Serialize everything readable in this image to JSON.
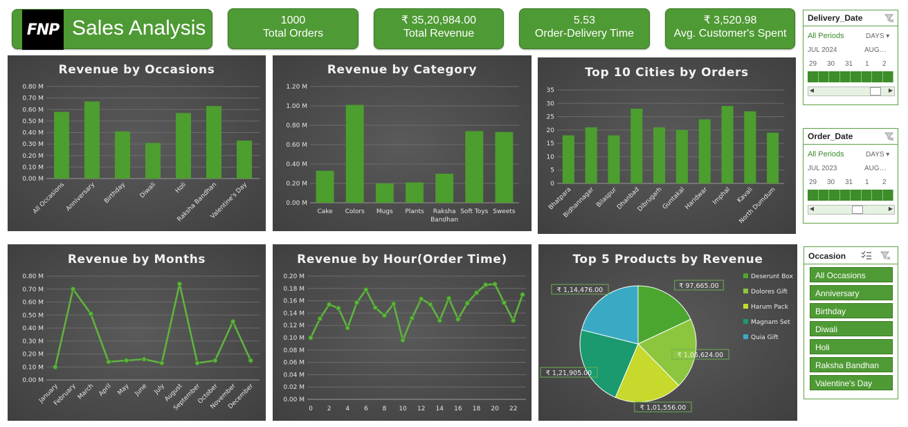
{
  "header": {
    "logo_text": "FNP",
    "title": "Sales Analysis"
  },
  "kpis": [
    {
      "value": "1000",
      "label": "Total Orders"
    },
    {
      "value": "₹ 35,20,984.00",
      "label": "Total Revenue"
    },
    {
      "value": "5.53",
      "label": "Order-Delivery Time"
    },
    {
      "value": "₹ 3,520.98",
      "label": "Avg. Customer's Spent"
    }
  ],
  "delivery_slicer": {
    "title": "Delivery_Date",
    "period": "All Periods",
    "unit": "DAYS",
    "month1": "JUL 2024",
    "month2": "AUG…",
    "days": [
      "29",
      "30",
      "31",
      "1",
      "2"
    ],
    "scroll_position": 0.9
  },
  "order_slicer": {
    "title": "Order_Date",
    "period": "All Periods",
    "unit": "DAYS",
    "month1": "JUL 2023",
    "month2": "AUG…",
    "days": [
      "29",
      "30",
      "31",
      "1",
      "2"
    ],
    "scroll_position": 0.6
  },
  "occasion_slicer": {
    "title": "Occasion",
    "items": [
      "All Occasions",
      "Anniversary",
      "Birthday",
      "Diwali",
      "Holi",
      "Raksha Bandhan",
      "Valentine's Day"
    ]
  },
  "colors": {
    "accent": "#4e9a34",
    "bar": "#4c9e2e",
    "line": "#5fb33f"
  },
  "chart_data": [
    {
      "id": "occasions",
      "type": "bar",
      "title": "Revenue by Occasions",
      "categories": [
        "All Occasions",
        "Anniversary",
        "Birthday",
        "Diwali",
        "Holi",
        "Raksha Bandhan",
        "Valentine's Day"
      ],
      "values": [
        0.58,
        0.67,
        0.41,
        0.31,
        0.57,
        0.63,
        0.33
      ],
      "ylim": [
        0,
        0.8
      ],
      "yticks": [
        "0.00 M",
        "0.10 M",
        "0.20 M",
        "0.30 M",
        "0.40 M",
        "0.50 M",
        "0.60 M",
        "0.70 M",
        "0.80 M"
      ],
      "grid": true
    },
    {
      "id": "category",
      "type": "bar",
      "title": "Revenue by Category",
      "categories": [
        "Cake",
        "Colors",
        "Mugs",
        "Plants",
        "Raksha Bandhan",
        "Soft Toys",
        "Sweets"
      ],
      "values": [
        0.33,
        1.01,
        0.2,
        0.21,
        0.3,
        0.74,
        0.73
      ],
      "ylim": [
        0,
        1.2
      ],
      "yticks": [
        "0.00 M",
        "0.20 M",
        "0.40 M",
        "0.60 M",
        "0.80 M",
        "1.00 M",
        "1.20 M"
      ],
      "grid": true
    },
    {
      "id": "cities",
      "type": "bar",
      "title": "Top 10 Cities by Orders",
      "categories": [
        "Bhatpara",
        "Bidhannagar",
        "Bilaspur",
        "Dhanbad",
        "Dibrugarh",
        "Guntakal",
        "Haridwar",
        "Imphal",
        "Kavali",
        "North Dumdum"
      ],
      "values": [
        18,
        21,
        18,
        28,
        21,
        20,
        24,
        29,
        27,
        19
      ],
      "ylim": [
        0,
        35
      ],
      "yticks": [
        "0",
        "5",
        "10",
        "15",
        "20",
        "25",
        "30",
        "35"
      ],
      "grid": true
    },
    {
      "id": "months",
      "type": "line",
      "title": "Revenue by Months",
      "categories": [
        "January",
        "February",
        "March",
        "April",
        "May",
        "June",
        "July",
        "August",
        "September",
        "October",
        "November",
        "December"
      ],
      "values": [
        0.1,
        0.7,
        0.51,
        0.14,
        0.15,
        0.16,
        0.13,
        0.74,
        0.13,
        0.15,
        0.45,
        0.15
      ],
      "ylim": [
        0,
        0.8
      ],
      "yticks": [
        "0.00 M",
        "0.10 M",
        "0.20 M",
        "0.30 M",
        "0.40 M",
        "0.50 M",
        "0.60 M",
        "0.70 M",
        "0.80 M"
      ],
      "grid": true
    },
    {
      "id": "hours",
      "type": "line",
      "title": "Revenue by Hour(Order Time)",
      "x": [
        0,
        1,
        2,
        3,
        4,
        5,
        6,
        7,
        8,
        9,
        10,
        11,
        12,
        13,
        14,
        15,
        16,
        17,
        18,
        19,
        20,
        21,
        22,
        23
      ],
      "xticks": [
        "0",
        "2",
        "4",
        "6",
        "8",
        "10",
        "12",
        "14",
        "16",
        "18",
        "20",
        "22"
      ],
      "values": [
        0.1,
        0.131,
        0.154,
        0.148,
        0.116,
        0.157,
        0.178,
        0.149,
        0.136,
        0.155,
        0.096,
        0.132,
        0.163,
        0.154,
        0.128,
        0.164,
        0.13,
        0.156,
        0.173,
        0.186,
        0.187,
        0.157,
        0.128,
        0.17
      ],
      "ylim": [
        0,
        0.2
      ],
      "yticks": [
        "0.00 M",
        "0.02 M",
        "0.04 M",
        "0.06 M",
        "0.08 M",
        "0.10 M",
        "0.12 M",
        "0.14 M",
        "0.16 M",
        "0.18 M",
        "0.20 M"
      ],
      "grid": true
    },
    {
      "id": "products",
      "type": "pie",
      "title": "Top 5 Products by Revenue",
      "legend_position": "right",
      "slices": [
        {
          "name": "Deserunt Box",
          "value": 97665,
          "label": "₹ 97,665.00",
          "color": "#4ba62f"
        },
        {
          "name": "Dolores Gift",
          "value": 106624,
          "label": "₹ 1,06,624.00",
          "color": "#8cc63f"
        },
        {
          "name": "Harum Pack",
          "value": 101556,
          "label": "₹ 1,01,556.00",
          "color": "#c6d92c"
        },
        {
          "name": "Magnam Set",
          "value": 121905,
          "label": "₹ 1,21,905.00",
          "color": "#1a9a6e"
        },
        {
          "name": "Quia Gift",
          "value": 114476,
          "label": "₹ 1,14,476.00",
          "color": "#3aaac4"
        }
      ]
    }
  ]
}
